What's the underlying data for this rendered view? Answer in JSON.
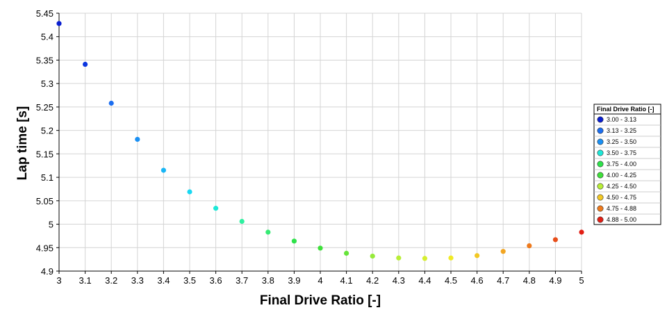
{
  "chart_data": {
    "type": "scatter",
    "xlabel": "Final Drive Ratio [-]",
    "ylabel": "Lap time [s]",
    "xlim": [
      3,
      5
    ],
    "ylim": [
      4.9,
      5.45
    ],
    "x_ticks": [
      "3",
      "3.1",
      "3.2",
      "3.3",
      "3.4",
      "3.5",
      "3.6",
      "3.7",
      "3.8",
      "3.9",
      "4",
      "4.1",
      "4.2",
      "4.3",
      "4.4",
      "4.5",
      "4.6",
      "4.7",
      "4.8",
      "4.9",
      "5"
    ],
    "y_ticks": [
      "4.9",
      "4.95",
      "5",
      "5.05",
      "5.1",
      "5.15",
      "5.2",
      "5.25",
      "5.3",
      "5.35",
      "5.4",
      "5.45"
    ],
    "grid": true,
    "points": [
      {
        "x": 3.0,
        "y": 5.428,
        "color": "#0a1fd0"
      },
      {
        "x": 3.1,
        "y": 5.341,
        "color": "#0b36e0"
      },
      {
        "x": 3.2,
        "y": 5.258,
        "color": "#1c6ef0"
      },
      {
        "x": 3.3,
        "y": 5.181,
        "color": "#1a90f4"
      },
      {
        "x": 3.4,
        "y": 5.115,
        "color": "#18b6f6"
      },
      {
        "x": 3.5,
        "y": 5.069,
        "color": "#1ad8f2"
      },
      {
        "x": 3.6,
        "y": 5.034,
        "color": "#1de8d8"
      },
      {
        "x": 3.7,
        "y": 5.006,
        "color": "#2ef0a0"
      },
      {
        "x": 3.8,
        "y": 4.983,
        "color": "#36ea74"
      },
      {
        "x": 3.9,
        "y": 4.964,
        "color": "#2ee24a"
      },
      {
        "x": 4.0,
        "y": 4.949,
        "color": "#3ee03a"
      },
      {
        "x": 4.1,
        "y": 4.938,
        "color": "#66e43a"
      },
      {
        "x": 4.2,
        "y": 4.932,
        "color": "#96ea3a"
      },
      {
        "x": 4.3,
        "y": 4.928,
        "color": "#b8ee36"
      },
      {
        "x": 4.4,
        "y": 4.927,
        "color": "#d6ee30"
      },
      {
        "x": 4.5,
        "y": 4.928,
        "color": "#f0ea26"
      },
      {
        "x": 4.6,
        "y": 4.933,
        "color": "#f2c824"
      },
      {
        "x": 4.7,
        "y": 4.942,
        "color": "#f2a522"
      },
      {
        "x": 4.8,
        "y": 4.954,
        "color": "#ee7a1c"
      },
      {
        "x": 4.9,
        "y": 4.967,
        "color": "#e84e1a"
      },
      {
        "x": 5.0,
        "y": 4.983,
        "color": "#e21e14"
      }
    ],
    "legend": {
      "title": "Final Drive Ratio [-]",
      "placement": "right",
      "entries": [
        {
          "label": "3.00 - 3.13",
          "color": "#0a1fd0"
        },
        {
          "label": "3.13 - 3.25",
          "color": "#1c6ef0"
        },
        {
          "label": "3.25 - 3.50",
          "color": "#1a90f4"
        },
        {
          "label": "3.50 - 3.75",
          "color": "#1de8d8"
        },
        {
          "label": "3.75 - 4.00",
          "color": "#2ee24a"
        },
        {
          "label": "4.00 - 4.25",
          "color": "#3ee03a"
        },
        {
          "label": "4.25 - 4.50",
          "color": "#b8ee36"
        },
        {
          "label": "4.50 - 4.75",
          "color": "#f2c824"
        },
        {
          "label": "4.75 - 4.88",
          "color": "#ee7a1c"
        },
        {
          "label": "4.88 - 5.00",
          "color": "#e21e14"
        }
      ]
    }
  }
}
